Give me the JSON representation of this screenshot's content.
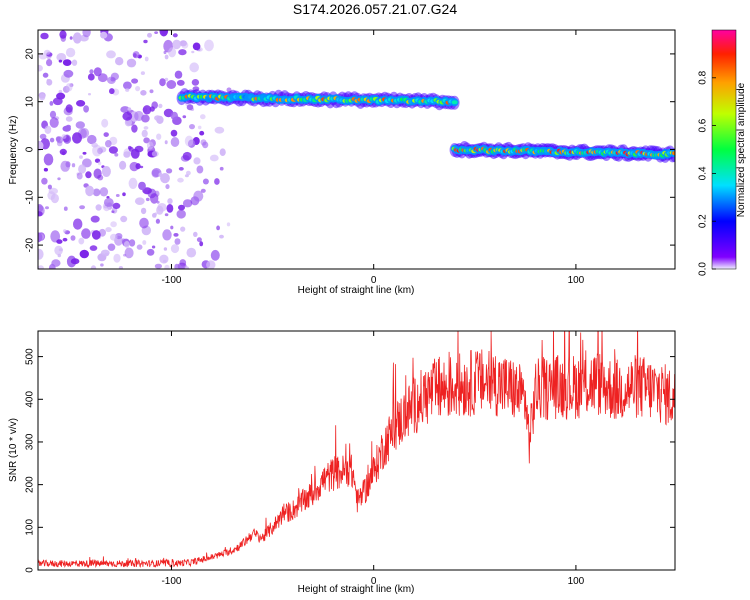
{
  "chart_data": [
    {
      "type": "heatmap",
      "title": "S174.2026.057.21.07.G24",
      "xlabel": "Height of straight line (km)",
      "ylabel": "Frequency (Hz)",
      "xlim": [
        -166,
        149
      ],
      "ylim": [
        -25,
        25
      ],
      "xticks": [
        -100,
        0,
        100
      ],
      "yticks": [
        -20,
        -10,
        0,
        10,
        20
      ],
      "colorbar": {
        "label": "Normalized spectral amplitude",
        "range": [
          0,
          1
        ],
        "ticks": [
          0.0,
          0.2,
          0.4,
          0.6,
          0.8
        ]
      },
      "features": [
        {
          "name": "noise region",
          "x_range": [
            -166,
            -70
          ],
          "freq_range": [
            -25,
            25
          ],
          "amplitude": 0.05
        },
        {
          "name": "line segment 1",
          "x_range": [
            -95,
            40
          ],
          "freq_start": 11,
          "freq_end": 10,
          "amplitude": 0.8
        },
        {
          "name": "line segment 2",
          "x_range": [
            40,
            149
          ],
          "freq_start": 0,
          "freq_end": -1,
          "amplitude": 0.85
        }
      ]
    },
    {
      "type": "line",
      "xlabel": "Height of straight line (km)",
      "ylabel": "SNR (10 * v/v)",
      "xlim": [
        -166,
        149
      ],
      "ylim": [
        0,
        560
      ],
      "xticks": [
        -100,
        0,
        100
      ],
      "yticks": [
        0,
        100,
        200,
        300,
        400,
        500
      ],
      "series": [
        {
          "name": "SNR",
          "color": "#ee2222",
          "x": [
            -166,
            -140,
            -120,
            -100,
            -90,
            -80,
            -70,
            -65,
            -60,
            -55,
            -50,
            -45,
            -40,
            -35,
            -30,
            -25,
            -20,
            -15,
            -12,
            -10,
            -8,
            -5,
            0,
            5,
            10,
            15,
            20,
            25,
            30,
            40,
            50,
            60,
            70,
            75,
            77,
            80,
            90,
            100,
            110,
            120,
            130,
            140,
            149
          ],
          "values": [
            15,
            15,
            15,
            15,
            18,
            30,
            45,
            60,
            85,
            75,
            100,
            130,
            140,
            160,
            180,
            210,
            225,
            230,
            240,
            220,
            160,
            180,
            230,
            290,
            330,
            360,
            385,
            405,
            420,
            430,
            440,
            440,
            420,
            400,
            300,
            420,
            430,
            430,
            440,
            420,
            430,
            420,
            400
          ]
        }
      ]
    }
  ]
}
